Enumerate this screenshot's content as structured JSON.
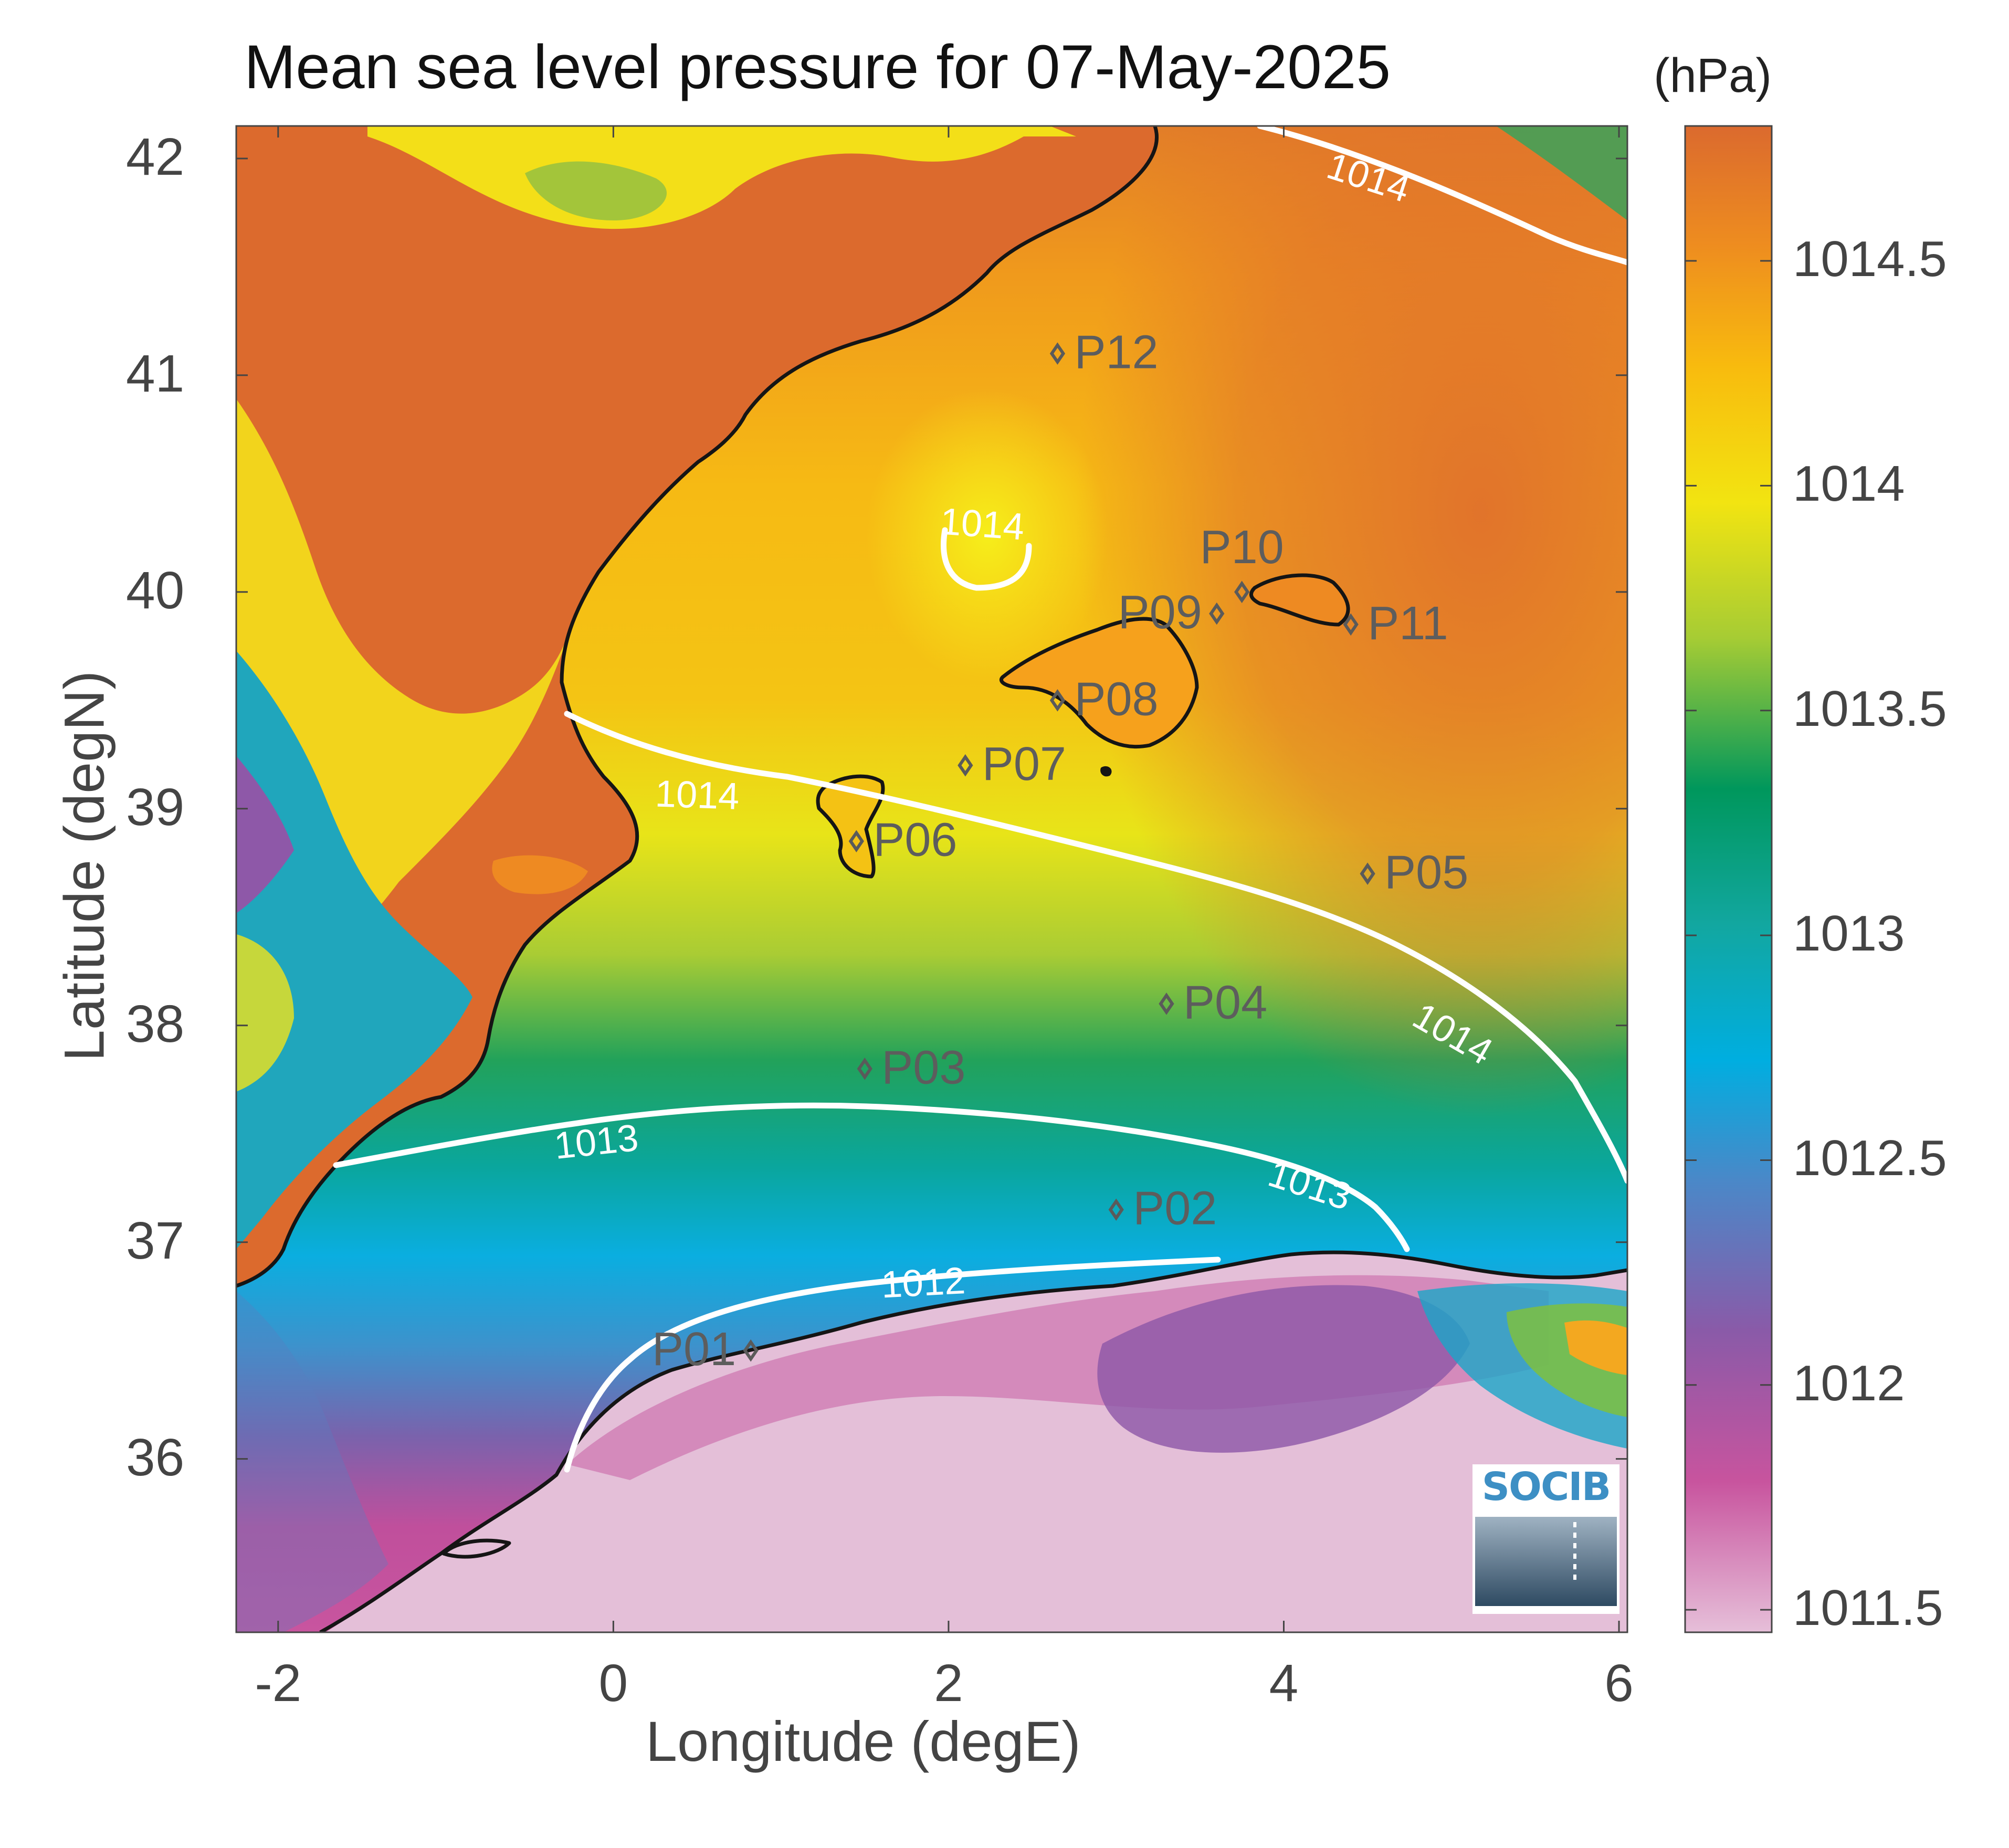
{
  "title": "Mean sea level pressure for 07-May-2025",
  "colorbar": {
    "unit_label": "(hPa)",
    "min": 1011.45,
    "max": 1014.8,
    "ticks": [
      {
        "value": 1014.5,
        "label": "1014.5"
      },
      {
        "value": 1014,
        "label": "1014"
      },
      {
        "value": 1013.5,
        "label": "1013.5"
      },
      {
        "value": 1013,
        "label": "1013"
      },
      {
        "value": 1012.5,
        "label": "1012.5"
      },
      {
        "value": 1012,
        "label": "1012"
      },
      {
        "value": 1011.5,
        "label": "1011.5"
      }
    ],
    "colors": [
      "#e6bfd9",
      "#c8549e",
      "#8a5aa8",
      "#4a88c8",
      "#00aee0",
      "#12a7a0",
      "#00975c",
      "#a6cc34",
      "#f2e411",
      "#f8bb0e",
      "#ee8d1f",
      "#db6a2e"
    ]
  },
  "axes": {
    "xlabel": "Longitude (degE)",
    "ylabel": "Latitude (degN)",
    "xlim": [
      -2.25,
      6.05
    ],
    "ylim": [
      35.2,
      42.15
    ],
    "xticks": [
      {
        "value": -2,
        "label": "-2"
      },
      {
        "value": 0,
        "label": "0"
      },
      {
        "value": 2,
        "label": "2"
      },
      {
        "value": 4,
        "label": "4"
      },
      {
        "value": 6,
        "label": "6"
      }
    ],
    "yticks": [
      {
        "value": 42,
        "label": "42"
      },
      {
        "value": 41,
        "label": "41"
      },
      {
        "value": 40,
        "label": "40"
      },
      {
        "value": 39,
        "label": "39"
      },
      {
        "value": 38,
        "label": "38"
      },
      {
        "value": 37,
        "label": "37"
      },
      {
        "value": 36,
        "label": "36"
      }
    ]
  },
  "contour_labels": [
    {
      "text": "1014",
      "lon": 4.5,
      "lat": 41.9,
      "rotate": 18
    },
    {
      "text": "1014",
      "lon": 2.2,
      "lat": 40.3,
      "rotate": 4
    },
    {
      "text": "1014",
      "lon": 0.5,
      "lat": 39.05,
      "rotate": 2
    },
    {
      "text": "1014",
      "lon": 5.0,
      "lat": 37.95,
      "rotate": 30
    },
    {
      "text": "1013",
      "lon": -0.1,
      "lat": 37.45,
      "rotate": -6
    },
    {
      "text": "1013",
      "lon": 4.15,
      "lat": 37.25,
      "rotate": 18
    },
    {
      "text": "1012",
      "lon": 1.85,
      "lat": 36.8,
      "rotate": -3
    }
  ],
  "stations": [
    {
      "id": "P01",
      "lon": 0.82,
      "lat": 36.5,
      "label_side": "left"
    },
    {
      "id": "P02",
      "lon": 3.0,
      "lat": 37.15,
      "label_side": "right"
    },
    {
      "id": "P03",
      "lon": 1.5,
      "lat": 37.8,
      "label_side": "right"
    },
    {
      "id": "P04",
      "lon": 3.3,
      "lat": 38.1,
      "label_side": "right"
    },
    {
      "id": "P05",
      "lon": 4.5,
      "lat": 38.7,
      "label_side": "right"
    },
    {
      "id": "P06",
      "lon": 1.45,
      "lat": 38.85,
      "label_side": "right"
    },
    {
      "id": "P07",
      "lon": 2.1,
      "lat": 39.2,
      "label_side": "right"
    },
    {
      "id": "P08",
      "lon": 2.65,
      "lat": 39.5,
      "label_side": "right"
    },
    {
      "id": "P09",
      "lon": 3.6,
      "lat": 39.9,
      "label_side": "left"
    },
    {
      "id": "P10",
      "lon": 3.75,
      "lat": 40.0,
      "label_side": "above"
    },
    {
      "id": "P11",
      "lon": 4.4,
      "lat": 39.85,
      "label_side": "right"
    },
    {
      "id": "P12",
      "lon": 2.65,
      "lat": 41.1,
      "label_side": "right"
    }
  ],
  "logo": {
    "text": "SOCIB"
  }
}
